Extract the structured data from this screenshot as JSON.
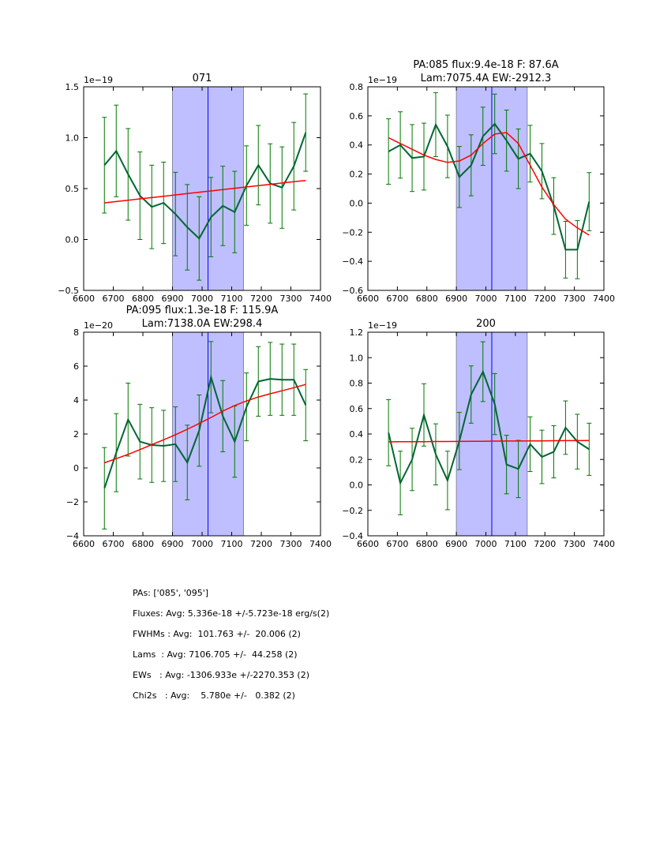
{
  "chart_data": [
    {
      "type": "line",
      "panel": "top-left",
      "title": "071",
      "offset_label": "1e−19",
      "xlim": [
        6600,
        7400
      ],
      "ylim": [
        -0.5,
        1.5
      ],
      "xticks": [
        6600,
        6700,
        6800,
        6900,
        7000,
        7100,
        7200,
        7300,
        7400
      ],
      "yticks": [
        -0.5,
        0.0,
        0.5,
        1.0,
        1.5
      ],
      "ytick_labels": [
        "−0.5",
        "0.0",
        "0.5",
        "1.0",
        "1.5"
      ],
      "shaded_region": [
        6900,
        7140
      ],
      "vline": 7020,
      "x": [
        6670,
        6710,
        6750,
        6790,
        6830,
        6870,
        6910,
        6950,
        6990,
        7030,
        7070,
        7110,
        7150,
        7190,
        7230,
        7270,
        7310,
        7350
      ],
      "series": [
        {
          "name": "data",
          "color": "#006633",
          "values": [
            0.73,
            0.87,
            0.64,
            0.43,
            0.32,
            0.36,
            0.25,
            0.12,
            0.01,
            0.22,
            0.33,
            0.27,
            0.53,
            0.73,
            0.55,
            0.51,
            0.72,
            1.05
          ],
          "errors": [
            0.47,
            0.45,
            0.45,
            0.43,
            0.41,
            0.4,
            0.41,
            0.42,
            0.41,
            0.39,
            0.39,
            0.4,
            0.39,
            0.39,
            0.39,
            0.4,
            0.43,
            0.38
          ]
        },
        {
          "name": "fit",
          "color": "#ff0000",
          "values": [
            0.36,
            0.373,
            0.386,
            0.399,
            0.412,
            0.425,
            0.438,
            0.451,
            0.464,
            0.477,
            0.49,
            0.503,
            0.516,
            0.529,
            0.542,
            0.555,
            0.568,
            0.58
          ]
        }
      ]
    },
    {
      "type": "line",
      "panel": "top-right",
      "title": "PA:085 flux:9.4e-18 F: 87.6A\nLam:7075.4A EW:-2912.3",
      "title_lines": [
        "PA:085 flux:9.4e-18 F: 87.6A",
        "Lam:7075.4A EW:-2912.3"
      ],
      "offset_label": "1e−19",
      "xlim": [
        6600,
        7400
      ],
      "ylim": [
        -0.6,
        0.8
      ],
      "xticks": [
        6600,
        6700,
        6800,
        6900,
        7000,
        7100,
        7200,
        7300,
        7400
      ],
      "yticks": [
        -0.6,
        -0.4,
        -0.2,
        0.0,
        0.2,
        0.4,
        0.6,
        0.8
      ],
      "ytick_labels": [
        "−0.6",
        "−0.4",
        "−0.2",
        "0.0",
        "0.2",
        "0.4",
        "0.6",
        "0.8"
      ],
      "shaded_region": [
        6900,
        7140
      ],
      "vline": 7020,
      "x": [
        6670,
        6710,
        6750,
        6790,
        6830,
        6870,
        6910,
        6950,
        6990,
        7030,
        7070,
        7110,
        7150,
        7190,
        7230,
        7270,
        7310,
        7350
      ],
      "series": [
        {
          "name": "data",
          "color": "#006633",
          "values": [
            0.355,
            0.4,
            0.31,
            0.32,
            0.54,
            0.39,
            0.18,
            0.26,
            0.46,
            0.545,
            0.43,
            0.305,
            0.34,
            0.22,
            -0.02,
            -0.32,
            -0.32,
            0.01
          ],
          "errors": [
            0.225,
            0.228,
            0.23,
            0.23,
            0.22,
            0.215,
            0.21,
            0.21,
            0.2,
            0.205,
            0.21,
            0.205,
            0.195,
            0.19,
            0.195,
            0.195,
            0.2,
            0.2
          ]
        },
        {
          "name": "fit",
          "color": "#ff0000",
          "values": [
            0.45,
            0.41,
            0.37,
            0.33,
            0.3,
            0.28,
            0.29,
            0.33,
            0.41,
            0.475,
            0.485,
            0.41,
            0.26,
            0.11,
            -0.01,
            -0.11,
            -0.17,
            -0.22
          ]
        }
      ]
    },
    {
      "type": "line",
      "panel": "bottom-left",
      "title": "PA:095 flux:1.3e-18 F: 115.9A\nLam:7138.0A EW:298.4",
      "title_lines": [
        "PA:095 flux:1.3e-18 F: 115.9A",
        "Lam:7138.0A EW:298.4"
      ],
      "offset_label": "1e−20",
      "xlim": [
        6600,
        7400
      ],
      "ylim": [
        -4,
        8
      ],
      "xticks": [
        6600,
        6700,
        6800,
        6900,
        7000,
        7100,
        7200,
        7300,
        7400
      ],
      "yticks": [
        -4,
        -2,
        0,
        2,
        4,
        6,
        8
      ],
      "ytick_labels": [
        "−4",
        "−2",
        "0",
        "2",
        "4",
        "6",
        "8"
      ],
      "shaded_region": [
        6900,
        7140
      ],
      "vline": 7020,
      "x": [
        6670,
        6710,
        6750,
        6790,
        6830,
        6870,
        6910,
        6950,
        6990,
        7030,
        7070,
        7110,
        7150,
        7190,
        7230,
        7270,
        7310,
        7350
      ],
      "series": [
        {
          "name": "data",
          "color": "#006633",
          "values": [
            -1.2,
            0.9,
            2.85,
            1.55,
            1.35,
            1.3,
            1.4,
            0.32,
            2.2,
            5.35,
            3.05,
            1.55,
            3.6,
            5.1,
            5.25,
            5.2,
            5.2,
            3.7
          ],
          "errors": [
            2.4,
            2.3,
            2.15,
            2.2,
            2.2,
            2.1,
            2.2,
            2.2,
            2.1,
            2.1,
            2.1,
            2.1,
            2.0,
            2.05,
            2.15,
            2.1,
            2.1,
            2.1
          ]
        },
        {
          "name": "fit",
          "color": "#ff0000",
          "values": [
            0.3,
            0.55,
            0.8,
            1.08,
            1.37,
            1.66,
            1.96,
            2.28,
            2.62,
            2.97,
            3.35,
            3.68,
            3.95,
            4.18,
            4.37,
            4.55,
            4.73,
            4.92
          ]
        }
      ]
    },
    {
      "type": "line",
      "panel": "bottom-right",
      "title": "200",
      "offset_label": "1e−19",
      "xlim": [
        6600,
        7400
      ],
      "ylim": [
        -0.4,
        1.2
      ],
      "xticks": [
        6600,
        6700,
        6800,
        6900,
        7000,
        7100,
        7200,
        7300,
        7400
      ],
      "yticks": [
        -0.4,
        -0.2,
        0.0,
        0.2,
        0.4,
        0.6,
        0.8,
        1.0,
        1.2
      ],
      "ytick_labels": [
        "−0.4",
        "−0.2",
        "0.0",
        "0.2",
        "0.4",
        "0.6",
        "0.8",
        "1.0",
        "1.2"
      ],
      "shaded_region": [
        6900,
        7140
      ],
      "vline": 7020,
      "x": [
        6670,
        6710,
        6750,
        6790,
        6830,
        6870,
        6910,
        6950,
        6990,
        7030,
        7070,
        7110,
        7150,
        7190,
        7230,
        7270,
        7310,
        7350
      ],
      "series": [
        {
          "name": "data",
          "color": "#006633",
          "values": [
            0.41,
            0.015,
            0.2,
            0.55,
            0.24,
            0.035,
            0.345,
            0.71,
            0.89,
            0.635,
            0.16,
            0.125,
            0.32,
            0.22,
            0.26,
            0.45,
            0.34,
            0.28
          ],
          "errors": [
            0.26,
            0.25,
            0.245,
            0.245,
            0.24,
            0.23,
            0.225,
            0.225,
            0.235,
            0.24,
            0.23,
            0.225,
            0.215,
            0.21,
            0.205,
            0.21,
            0.215,
            0.205
          ]
        },
        {
          "name": "fit",
          "color": "#ff0000",
          "values": [
            0.338,
            0.339,
            0.339,
            0.34,
            0.341,
            0.341,
            0.342,
            0.343,
            0.343,
            0.344,
            0.345,
            0.345,
            0.346,
            0.346,
            0.347,
            0.348,
            0.348,
            0.349
          ]
        }
      ]
    }
  ],
  "colors": {
    "shade": "#bfbfff",
    "shade_edge": "#8888aa",
    "vline": "#0000ff",
    "data": "#006633",
    "fit": "#ff0000"
  },
  "stats": [
    "PAs: ['085', '095']",
    "Fluxes: Avg: 5.336e-18 +/-5.723e-18 erg/s(2)",
    "FWHMs : Avg:  101.763 +/-  20.006 (2)",
    "Lams  : Avg: 7106.705 +/-  44.258 (2)",
    "EWs   : Avg: -1306.933e +/-2270.353 (2)",
    "Chi2s   : Avg:    5.780e +/-   0.382 (2)"
  ]
}
